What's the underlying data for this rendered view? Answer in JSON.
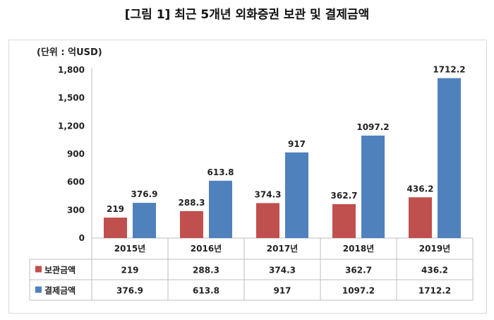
{
  "figure_title": "[그림 1] 최근 5개년 외화증권 보관 및 결제금액",
  "chart_data": {
    "type": "bar",
    "title": "[그림 1] 최근 5개년 외화증권 보관 및 결제금액",
    "unit_label": "(단위 : 억USD)",
    "categories": [
      "2015년",
      "2016년",
      "2017년",
      "2018년",
      "2019년"
    ],
    "series": [
      {
        "name": "보관금액",
        "color": "#c0504d",
        "values": [
          219,
          288.3,
          374.3,
          362.7,
          436.2
        ],
        "labels": [
          "219",
          "288.3",
          "374.3",
          "362.7",
          "436.2"
        ]
      },
      {
        "name": "결제금액",
        "color": "#4f81bd",
        "values": [
          376.9,
          613.8,
          917,
          1097.2,
          1712.2
        ],
        "labels": [
          "376.9",
          "613.8",
          "917",
          "1097.2",
          "1712.2"
        ]
      }
    ],
    "ylim": [
      0,
      1800
    ],
    "yticks": [
      "0",
      "300",
      "600",
      "900",
      "1,200",
      "1,500",
      "1,800"
    ],
    "ytick_values": [
      0,
      300,
      600,
      900,
      1200,
      1500,
      1800
    ],
    "data_table": true,
    "grid": false
  }
}
